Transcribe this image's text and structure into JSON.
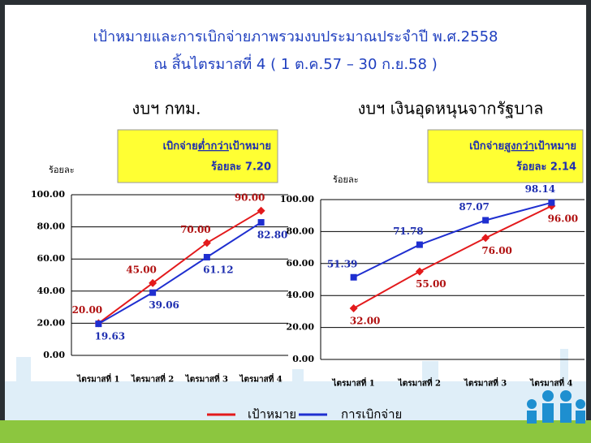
{
  "header": {
    "title": "เป้าหมายและการเบิกจ่ายภาพรวมงบประมาณประจำปี พ.ศ.2558",
    "subtitle": "ณ สิ้นไตรมาสที่ 4 ( 1 ต.ค.57 – 30 ก.ย.58 )"
  },
  "chart_data": [
    {
      "type": "line",
      "title": "งบฯ กทม.",
      "annotation": [
        "เบิกจ่าย",
        "ต่ำกว่า",
        "เป้าหมาย"
      ],
      "annotation_value": "ร้อยละ 7.20",
      "y_label": "ร้อยละ",
      "categories": [
        "ไตรมาสที่ 1",
        "ไตรมาสที่ 2",
        "ไตรมาสที่ 3",
        "ไตรมาสที่ 4"
      ],
      "series": [
        {
          "name": "เป้าหมาย",
          "color": "#e31a1c",
          "values": [
            20,
            45,
            70,
            90
          ],
          "value_labels": [
            "20.00",
            "45.00",
            "70.00",
            "90.00"
          ]
        },
        {
          "name": "การเบิกจ่าย",
          "color": "#1f2fd0",
          "values": [
            19.63,
            39.06,
            61.12,
            82.8
          ],
          "value_labels": [
            "19.63",
            "39.06",
            "61.12",
            "82.80"
          ]
        }
      ],
      "ylim": [
        0,
        100
      ],
      "yticks": [
        {
          "value": 0,
          "label": "0.00"
        },
        {
          "value": 20,
          "label": "20.00"
        },
        {
          "value": 40,
          "label": "40.00"
        },
        {
          "value": 60,
          "label": "60.00"
        },
        {
          "value": 80,
          "label": "80.00"
        },
        {
          "value": 100,
          "label": "100.00"
        }
      ],
      "grid": true
    },
    {
      "type": "line",
      "title": "งบฯ เงินอุดหนุนจากรัฐบาล",
      "annotation": [
        "เบิกจ่าย",
        "สูงกว่า",
        "เป้าหมาย"
      ],
      "annotation_value": "ร้อยละ 2.14",
      "y_label": "ร้อยละ",
      "categories": [
        "ไตรมาสที่ 1",
        "ไตรมาสที่ 2",
        "ไตรมาสที่ 3",
        "ไตรมาสที่ 4"
      ],
      "series": [
        {
          "name": "เป้าหมาย",
          "color": "#e31a1c",
          "values": [
            32,
            55,
            76,
            96
          ],
          "value_labels": [
            "32.00",
            "55.00",
            "76.00",
            "96.00"
          ]
        },
        {
          "name": "การเบิกจ่าย",
          "color": "#1f2fd0",
          "values": [
            51.39,
            71.78,
            87.07,
            98.14
          ],
          "value_labels": [
            "51.39",
            "71.78",
            "87.07",
            "98.14"
          ]
        }
      ],
      "ylim": [
        0,
        100
      ],
      "yticks": [
        {
          "value": 0,
          "label": "0.00"
        },
        {
          "value": 20,
          "label": "20.00"
        },
        {
          "value": 40,
          "label": "40.00"
        },
        {
          "value": 60,
          "label": "60.00"
        },
        {
          "value": 80,
          "label": "80.00"
        },
        {
          "value": 100,
          "label": "100.00"
        }
      ],
      "grid": true
    }
  ]
}
